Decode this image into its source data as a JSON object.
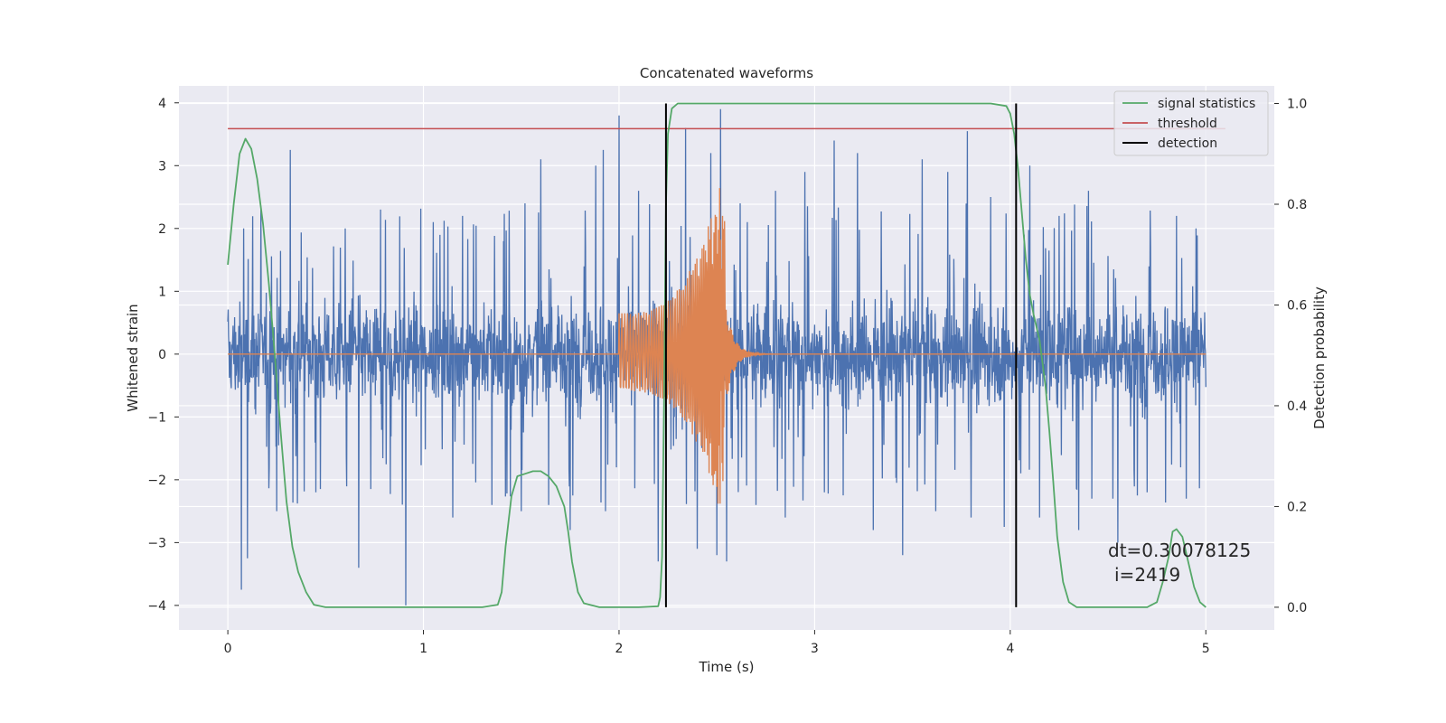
{
  "chart_data": {
    "type": "line",
    "title": "Concatenated waveforms",
    "xlabel": "Time (s)",
    "ylabel_left": "Whitened strain",
    "ylabel_right": "Detection probability",
    "xlim": [
      -0.25,
      5.35
    ],
    "ylim_left": [
      -4.39,
      4.27
    ],
    "ylim_right": [
      -0.045,
      1.035
    ],
    "xticks": [
      0,
      1,
      2,
      3,
      4,
      5
    ],
    "yticks_left": [
      -4,
      -3,
      -2,
      -1,
      0,
      1,
      2,
      3,
      4
    ],
    "yticks_right": [
      0.0,
      0.2,
      0.4,
      0.6,
      0.8,
      1.0
    ],
    "xtick_labels": [
      "0",
      "1",
      "2",
      "3",
      "4",
      "5"
    ],
    "ytick_labels_left": [
      "−4",
      "−3",
      "−2",
      "−1",
      "0",
      "1",
      "2",
      "3",
      "4"
    ],
    "ytick_labels_right": [
      "0.0",
      "0.2",
      "0.4",
      "0.6",
      "0.8",
      "1.0"
    ],
    "grid": true,
    "legend_position": "top-right",
    "colors": {
      "strain": "#4c72b0",
      "injection": "#dd8452",
      "signal_statistics": "#55a868",
      "threshold": "#c44e52",
      "detection": "#000000",
      "plot_bg": "#eaeaf2",
      "grid": "#ffffff"
    },
    "series": [
      {
        "name": "signal statistics",
        "axis": "right",
        "x": [
          0,
          0.03,
          0.06,
          0.09,
          0.12,
          0.15,
          0.18,
          0.21,
          0.24,
          0.27,
          0.3,
          0.33,
          0.36,
          0.4,
          0.44,
          0.5,
          0.7,
          1.0,
          1.3,
          1.38,
          1.4,
          1.42,
          1.45,
          1.48,
          1.52,
          1.56,
          1.6,
          1.64,
          1.68,
          1.72,
          1.74,
          1.76,
          1.79,
          1.82,
          1.9,
          2.1,
          2.2,
          2.21,
          2.22,
          2.23,
          2.24,
          2.25,
          2.27,
          2.3,
          2.4,
          3.0,
          3.9,
          3.98,
          4.0,
          4.02,
          4.04,
          4.06,
          4.08,
          4.1,
          4.12,
          4.15,
          4.18,
          4.2,
          4.22,
          4.24,
          4.27,
          4.3,
          4.34,
          4.5,
          4.7,
          4.75,
          4.78,
          4.81,
          4.83,
          4.85,
          4.88,
          4.91,
          4.94,
          4.97,
          5.0
        ],
        "y": [
          0.68,
          0.8,
          0.9,
          0.93,
          0.91,
          0.85,
          0.76,
          0.64,
          0.5,
          0.35,
          0.21,
          0.12,
          0.07,
          0.03,
          0.005,
          0.0,
          0.0,
          0.0,
          0.0,
          0.005,
          0.03,
          0.12,
          0.22,
          0.26,
          0.265,
          0.27,
          0.27,
          0.26,
          0.24,
          0.2,
          0.15,
          0.09,
          0.03,
          0.008,
          0.0,
          0.0,
          0.002,
          0.02,
          0.1,
          0.4,
          0.8,
          0.94,
          0.99,
          1.0,
          1.0,
          1.0,
          1.0,
          0.995,
          0.98,
          0.94,
          0.87,
          0.78,
          0.69,
          0.62,
          0.58,
          0.53,
          0.44,
          0.35,
          0.25,
          0.14,
          0.05,
          0.01,
          0.0,
          0.0,
          0.0,
          0.01,
          0.05,
          0.1,
          0.15,
          0.155,
          0.14,
          0.09,
          0.04,
          0.01,
          0.0
        ]
      },
      {
        "name": "threshold",
        "axis": "right",
        "x": [
          0,
          5.1
        ],
        "y": [
          0.95,
          0.95
        ]
      },
      {
        "name": "detection",
        "axis": "right",
        "lines_x": [
          2.24,
          4.03
        ],
        "y_range": [
          0.0,
          1.0
        ]
      }
    ],
    "strain": {
      "axis": "left",
      "x_range": [
        0,
        5
      ],
      "typical_band": [
        -0.85,
        1.2
      ],
      "spikes_up": [
        [
          0.08,
          2.0
        ],
        [
          0.17,
          2.35
        ],
        [
          0.32,
          3.25
        ],
        [
          0.45,
          2.3
        ],
        [
          0.6,
          2.0
        ],
        [
          0.78,
          2.3
        ],
        [
          0.91,
          2.95
        ],
        [
          1.05,
          2.1
        ],
        [
          1.2,
          2.2
        ],
        [
          1.35,
          2.6
        ],
        [
          1.52,
          2.4
        ],
        [
          1.6,
          3.1
        ],
        [
          1.75,
          3.6
        ],
        [
          1.88,
          3.0
        ],
        [
          1.92,
          3.25
        ],
        [
          2.0,
          3.8
        ],
        [
          2.1,
          2.6
        ],
        [
          2.2,
          3.1
        ],
        [
          2.34,
          3.6
        ],
        [
          2.47,
          3.2
        ],
        [
          2.52,
          3.9
        ],
        [
          2.62,
          2.4
        ],
        [
          2.8,
          2.6
        ],
        [
          2.95,
          2.9
        ],
        [
          3.1,
          3.4
        ],
        [
          3.22,
          3.2
        ],
        [
          3.3,
          3.5
        ],
        [
          3.45,
          2.8
        ],
        [
          3.55,
          3.1
        ],
        [
          3.68,
          2.9
        ],
        [
          3.78,
          3.55
        ],
        [
          3.9,
          2.5
        ],
        [
          4.1,
          3.0
        ],
        [
          4.25,
          2.2
        ],
        [
          4.4,
          2.6
        ],
        [
          4.55,
          2.4
        ],
        [
          4.7,
          2.3
        ],
        [
          4.85,
          2.2
        ],
        [
          4.95,
          2.0
        ]
      ],
      "spikes_down": [
        [
          0.07,
          -3.75
        ],
        [
          0.1,
          -3.25
        ],
        [
          0.25,
          -2.5
        ],
        [
          0.45,
          -2.2
        ],
        [
          0.67,
          -3.4
        ],
        [
          0.91,
          -4.0
        ],
        [
          1.15,
          -2.6
        ],
        [
          1.35,
          -2.4
        ],
        [
          1.5,
          -2.5
        ],
        [
          1.64,
          -2.4
        ],
        [
          1.75,
          -2.8
        ],
        [
          1.93,
          -2.5
        ],
        [
          2.2,
          -3.3
        ],
        [
          2.4,
          -3.1
        ],
        [
          2.5,
          -3.2
        ],
        [
          2.55,
          -3.3
        ],
        [
          2.7,
          -2.4
        ],
        [
          2.85,
          -2.6
        ],
        [
          3.05,
          -2.2
        ],
        [
          3.3,
          -2.8
        ],
        [
          3.45,
          -3.2
        ],
        [
          3.62,
          -2.5
        ],
        [
          3.8,
          -2.6
        ],
        [
          3.97,
          -2.75
        ],
        [
          4.15,
          -2.6
        ],
        [
          4.35,
          -2.8
        ],
        [
          4.55,
          -3.0
        ],
        [
          4.7,
          -2.2
        ],
        [
          4.9,
          -2.3
        ]
      ]
    },
    "injection": {
      "axis": "left",
      "start": 2.0,
      "merger": 2.54,
      "end": 2.95,
      "amplitude_start": 0.65,
      "amplitude_peak": 3.1,
      "amplitude_min_peak": -2.8
    },
    "annotations": [
      "dt=0.30078125",
      "i=2419"
    ],
    "legend": [
      "signal statistics",
      "threshold",
      "detection"
    ]
  }
}
